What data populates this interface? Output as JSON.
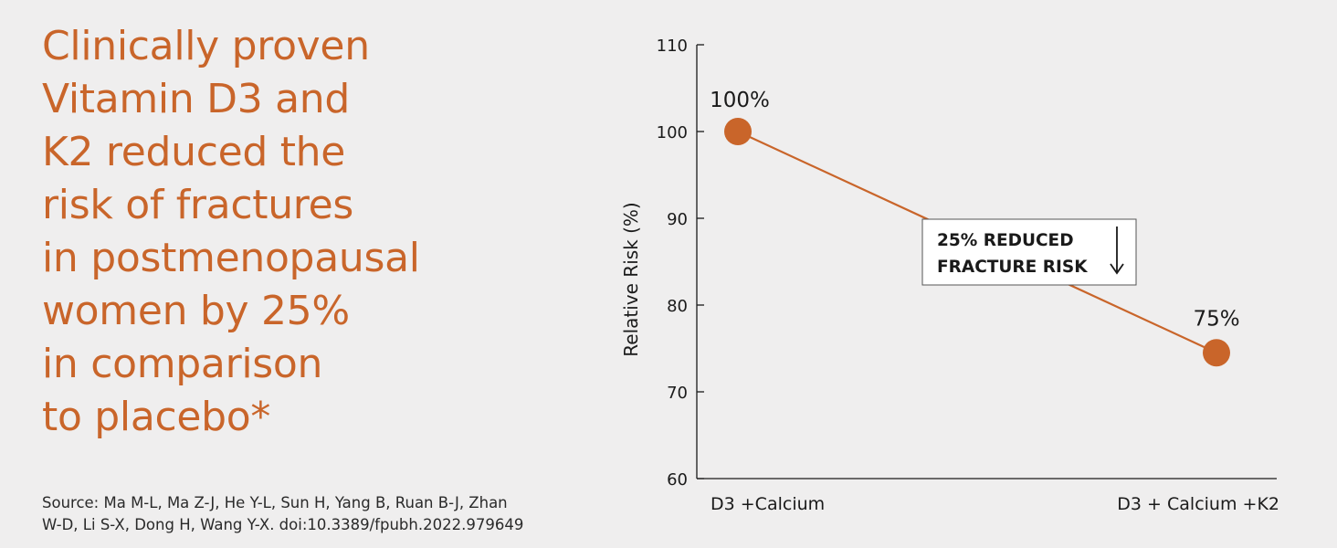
{
  "headline": {
    "lines": [
      "Clinically proven",
      "Vitamin D3 and",
      "K2 reduced the",
      "risk of fractures",
      "in postmenopausal",
      "women by 25%",
      "in comparison",
      "to placebo*"
    ]
  },
  "source": {
    "lines": [
      "Source: Ma M-L, Ma Z-J, He Y-L, Sun H, Yang B, Ruan B-J, Zhan",
      "W-D, Li S-X, Dong H, Wang Y-X. doi:10.3389/fpubh.2022.979649"
    ]
  },
  "colors": {
    "accent": "#c9652a",
    "text": "#1a1a1a",
    "background": "#efeeee"
  },
  "chart_data": {
    "type": "line",
    "categories": [
      "D3 +Calcium",
      "D3 + Calcium +K2"
    ],
    "series": [
      {
        "values": [
          100,
          74.5
        ],
        "point_labels": [
          "100%",
          "75%"
        ]
      }
    ],
    "ylabel": "Relative Risk (%)",
    "xlabel": "",
    "title": "",
    "ylim": [
      60,
      110
    ],
    "yticks": [
      60,
      70,
      80,
      90,
      100,
      110
    ],
    "grid": false,
    "annotation": {
      "lines": [
        "25% REDUCED",
        "FRACTURE RISK"
      ],
      "icon": "down-arrow-icon"
    }
  }
}
